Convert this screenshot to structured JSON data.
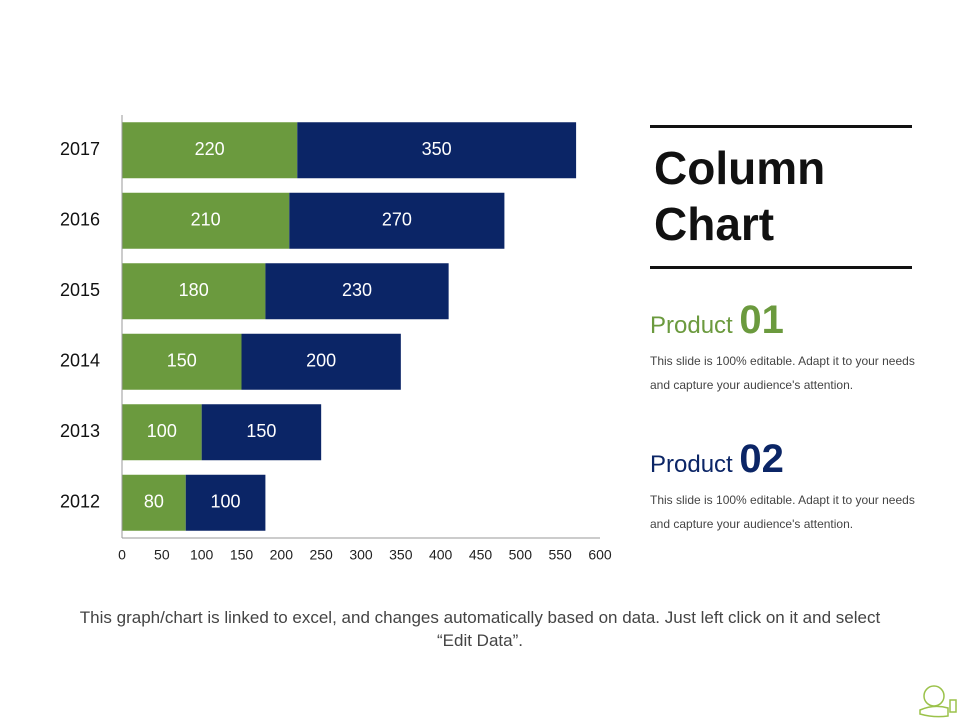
{
  "chart_data": {
    "type": "stacked-barh",
    "categories": [
      "2012",
      "2013",
      "2014",
      "2015",
      "2016",
      "2017"
    ],
    "series": [
      {
        "color": "#6b9a3e",
        "values": [
          80,
          100,
          150,
          180,
          210,
          220
        ]
      },
      {
        "color": "#0b2566",
        "values": [
          100,
          150,
          200,
          230,
          270,
          350
        ]
      }
    ],
    "xlim": [
      0,
      600
    ],
    "xticks": [
      0,
      50,
      100,
      150,
      200,
      250,
      300,
      350,
      400,
      450,
      500,
      550,
      600
    ],
    "grid": false
  },
  "panel": {
    "title": "Column Chart",
    "items": [
      {
        "label": "Product",
        "number": "01",
        "color": "#6b9a3e",
        "text": "This slide is 100% editable. Adapt it to your needs and capture your audience's attention."
      },
      {
        "label": "Product",
        "number": "02",
        "color": "#0b2566",
        "text": "This slide is 100% editable. Adapt it to your needs and capture your audience's attention."
      }
    ]
  },
  "footer": "This graph/chart is linked to excel, and changes automatically based on data. Just left click on it and select “Edit Data”."
}
